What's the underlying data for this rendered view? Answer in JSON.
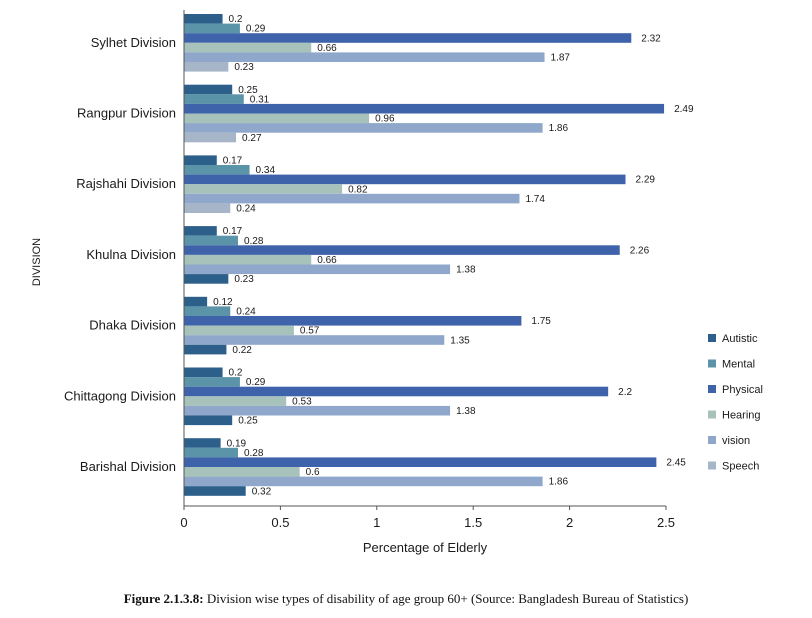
{
  "chart_data": {
    "type": "bar",
    "orientation": "horizontal",
    "categories": [
      "Sylhet Division",
      "Rangpur Division",
      "Rajshahi Division",
      "Khulna Division",
      "Dhaka Division",
      "Chittagong Division",
      "Barishal Division"
    ],
    "series": [
      {
        "name": "Autistic",
        "color": "#2c5f8a",
        "values": [
          0.2,
          0.25,
          0.17,
          0.17,
          0.12,
          0.2,
          0.19
        ]
      },
      {
        "name": "Mental",
        "color": "#5b93a8",
        "values": [
          0.29,
          0.31,
          0.34,
          0.28,
          0.24,
          0.29,
          0.28
        ]
      },
      {
        "name": "Physical",
        "color": "#3f63aa",
        "values": [
          2.32,
          2.49,
          2.29,
          2.26,
          1.75,
          2.2,
          2.45
        ]
      },
      {
        "name": "Hearing",
        "color": "#a6c2ba",
        "values": [
          0.66,
          0.96,
          0.82,
          0.66,
          0.57,
          0.53,
          0.6
        ]
      },
      {
        "name": "vision",
        "color": "#8ea7cb",
        "values": [
          1.87,
          1.86,
          1.74,
          1.38,
          1.35,
          1.38,
          1.86
        ]
      },
      {
        "name": "Speech",
        "color": "#a7b5c9",
        "values": [
          0.23,
          0.27,
          0.24,
          0.23,
          0.22,
          0.25,
          0.32
        ]
      }
    ],
    "last_bar_color_override": {
      "Khulna Division": "#2c5f8a",
      "Dhaka Division": "#2c5f8a",
      "Chittagong Division": "#2c5f8a",
      "Barishal Division": "#2c5f8a"
    },
    "xlabel": "Percentage of Elderly",
    "ylabel": "DIVISION",
    "xlim": [
      0,
      2.5
    ],
    "xticks": [
      "0",
      "0.5",
      "1",
      "1.5",
      "2",
      "2.5"
    ],
    "legend_position": "right",
    "grid": false
  },
  "caption": {
    "label": "Figure 2.1.3.8:",
    "text": "Division wise types of disability of age group 60+ (Source: Bangladesh Bureau of Statistics)"
  }
}
